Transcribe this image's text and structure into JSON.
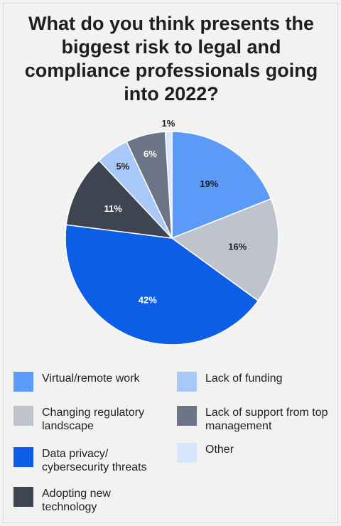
{
  "chart_data": {
    "type": "pie",
    "title": "What do you think presents the biggest risk to legal and compliance professionals going into 2022?",
    "start_angle_deg": 0,
    "direction": "clockwise",
    "slices": [
      {
        "label": "Virtual/remote work",
        "value": 19,
        "display": "19%",
        "color": "#5b9bf7",
        "label_color": "#1f1f1f"
      },
      {
        "label": "Changing regulatory landscape",
        "value": 16,
        "display": "16%",
        "color": "#bfc4cc",
        "label_color": "#1f1f1f"
      },
      {
        "label": "Data privacy/ cybersecurity threats",
        "value": 42,
        "display": "42%",
        "color": "#0d5ee6",
        "label_color": "#ffffff"
      },
      {
        "label": "Adopting new technology",
        "value": 11,
        "display": "11%",
        "color": "#3f4550",
        "label_color": "#ffffff"
      },
      {
        "label": "Lack of funding",
        "value": 5,
        "display": "5%",
        "color": "#a8c8f8",
        "label_color": "#1f1f1f"
      },
      {
        "label": "Lack of support from top management",
        "value": 6,
        "display": "6%",
        "color": "#6b7585",
        "label_color": "#ffffff"
      },
      {
        "label": "Other",
        "value": 1,
        "display": "1%",
        "color": "#d6e6fb",
        "label_color": "#1f1f1f"
      }
    ]
  },
  "legend": {
    "left": [
      {
        "label": "Virtual/remote work",
        "color": "#5b9bf7"
      },
      {
        "label": "Changing regulatory landscape",
        "color": "#bfc4cc"
      },
      {
        "label": "Data privacy/ cybersecurity threats",
        "color": "#0d5ee6"
      },
      {
        "label": "Adopting new technology",
        "color": "#3f4550"
      }
    ],
    "right": [
      {
        "label": "Lack of funding",
        "color": "#a8c8f8"
      },
      {
        "label": "Lack of support from top management",
        "color": "#6b7585"
      },
      {
        "label": "Other",
        "color": "#d6e6fb"
      }
    ]
  }
}
